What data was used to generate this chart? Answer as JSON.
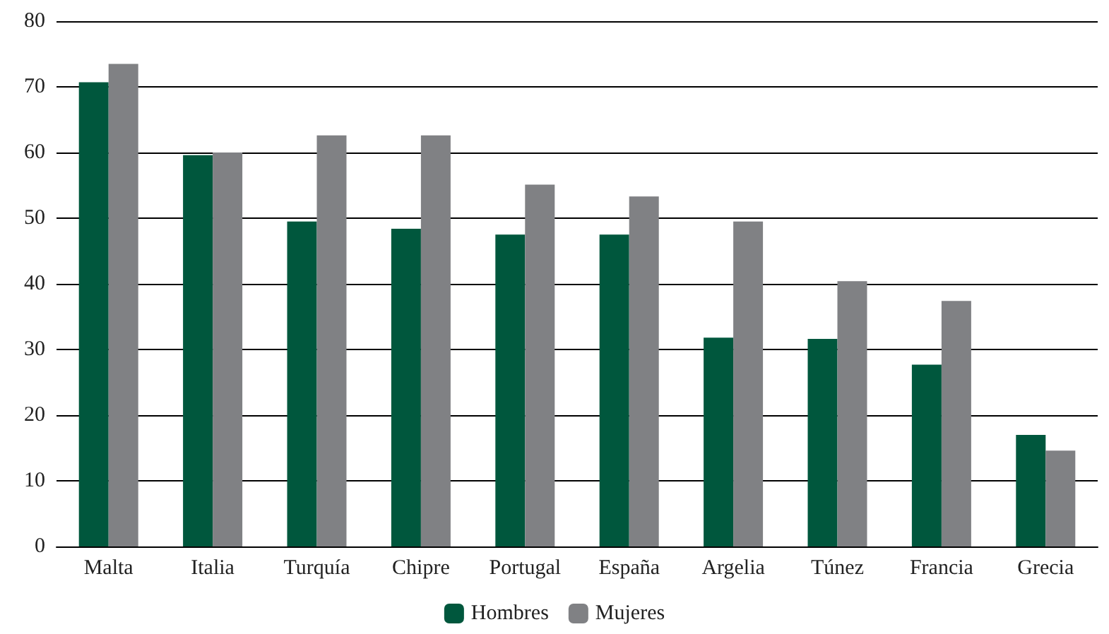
{
  "chart_data": {
    "type": "bar",
    "categories": [
      "Malta",
      "Italia",
      "Turquía",
      "Chipre",
      "Portugal",
      "España",
      "Argelia",
      "Túnez",
      "Francia",
      "Grecia"
    ],
    "series": [
      {
        "name": "Hombres",
        "color": "#00573d",
        "values": [
          70.7,
          59.6,
          49.5,
          48.4,
          47.5,
          47.5,
          31.8,
          31.6,
          27.7,
          17.0
        ]
      },
      {
        "name": "Mujeres",
        "color": "#808184",
        "values": [
          73.5,
          60.0,
          62.6,
          62.6,
          55.1,
          53.3,
          49.5,
          40.4,
          37.4,
          14.6
        ]
      }
    ],
    "ylim": [
      0,
      80
    ],
    "yticks": [
      0,
      10,
      20,
      30,
      40,
      50,
      60,
      70,
      80
    ],
    "grid": "y",
    "legend": "bottom"
  }
}
